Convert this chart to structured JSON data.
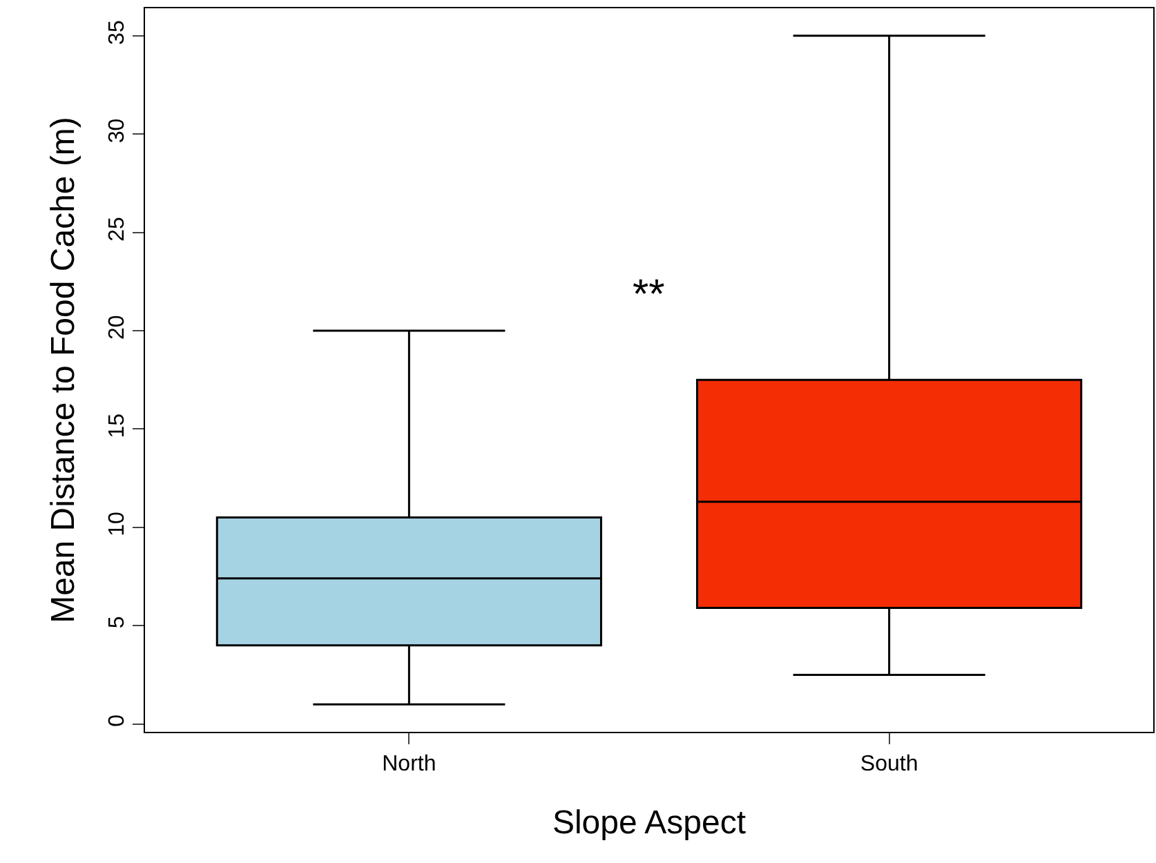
{
  "chart_data": {
    "type": "box",
    "xlabel": "Slope Aspect",
    "ylabel": "Mean Distance to Food Cache (m)",
    "categories": [
      "North",
      "South"
    ],
    "colors": [
      "#a6d3e3",
      "#f52d05"
    ],
    "boxes": [
      {
        "low": 1,
        "q1": 4,
        "median": 7.4,
        "q3": 10.5,
        "high": 20
      },
      {
        "low": 2.5,
        "q1": 5.9,
        "median": 11.3,
        "q3": 17.5,
        "high": 35
      }
    ],
    "ylim": [
      -0.4,
      36.4
    ],
    "yticks": [
      0,
      5,
      10,
      15,
      20,
      25,
      30,
      35
    ],
    "annotations": [
      "**"
    ],
    "legend": false
  }
}
